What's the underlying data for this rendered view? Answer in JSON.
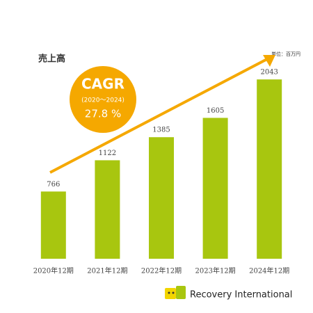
{
  "chart_data": {
    "type": "bar",
    "title": "売上高",
    "unit_label": "単位：百万円",
    "categories": [
      "2020年12期",
      "2021年12期",
      "2022年12期",
      "2023年12期",
      "2024年12期"
    ],
    "values": [
      766,
      1122,
      1385,
      1605,
      2043
    ],
    "color": "#a8c60f",
    "ylim": [
      0,
      2100
    ],
    "cagr": {
      "label": "CAGR",
      "period": "(2020～2024)",
      "value": "27.8 %",
      "color": "#f5a800"
    },
    "brand": "Recovery International"
  }
}
